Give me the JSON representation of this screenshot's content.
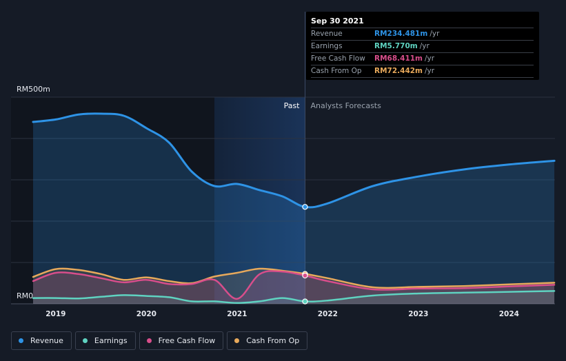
{
  "chart_data": {
    "type": "area",
    "title": "",
    "y_axis": {
      "top_label": "RM500m",
      "bottom_label": "RM0",
      "ylim": [
        0,
        500
      ]
    },
    "x_axis": {
      "ticks": [
        "2019",
        "2020",
        "2021",
        "2022",
        "2023",
        "2024"
      ],
      "xlim": [
        2018.75,
        2024.5
      ]
    },
    "divider_x": 2021.75,
    "past_start_x": 2020.75,
    "regions": {
      "past": "Past",
      "forecast": "Analysts Forecasts"
    },
    "series": [
      {
        "name": "Revenue",
        "color": "#2e93e6",
        "x": [
          2018.75,
          2019.0,
          2019.25,
          2019.5,
          2019.75,
          2020.0,
          2020.25,
          2020.5,
          2020.75,
          2021.0,
          2021.25,
          2021.5,
          2021.75,
          2022.0,
          2022.5,
          2023.0,
          2023.5,
          2024.0,
          2024.5
        ],
        "y": [
          440,
          446,
          458,
          460,
          455,
          425,
          390,
          320,
          285,
          290,
          275,
          260,
          234.481,
          243,
          285,
          308,
          325,
          337,
          346
        ],
        "forecast_from": 2021.75
      },
      {
        "name": "Earnings",
        "color": "#5fd3c1",
        "x": [
          2018.75,
          2019.0,
          2019.25,
          2019.5,
          2019.75,
          2020.0,
          2020.25,
          2020.5,
          2020.75,
          2021.0,
          2021.25,
          2021.5,
          2021.75,
          2022.0,
          2022.5,
          2023.0,
          2023.5,
          2024.0,
          2024.5
        ],
        "y": [
          14,
          14,
          13,
          17,
          21,
          19,
          16,
          6,
          6,
          2,
          6,
          14,
          5.77,
          8,
          20,
          25,
          27,
          29,
          31
        ],
        "forecast_from": 2021.75
      },
      {
        "name": "Free Cash Flow",
        "color": "#d84e8b",
        "x": [
          2018.75,
          2019.0,
          2019.25,
          2019.5,
          2019.75,
          2020.0,
          2020.25,
          2020.5,
          2020.75,
          2021.0,
          2021.25,
          2021.5,
          2021.75,
          2022.0,
          2022.5,
          2023.0,
          2023.5,
          2024.0,
          2024.5
        ],
        "y": [
          55,
          75,
          72,
          62,
          52,
          58,
          48,
          48,
          58,
          12,
          72,
          78,
          68.411,
          55,
          35,
          37,
          38,
          42,
          46
        ],
        "forecast_from": 2021.75
      },
      {
        "name": "Cash From Op",
        "color": "#e8a95b",
        "x": [
          2018.75,
          2019.0,
          2019.25,
          2019.5,
          2019.75,
          2020.0,
          2020.25,
          2020.5,
          2020.75,
          2021.0,
          2021.25,
          2021.5,
          2021.75,
          2022.0,
          2022.5,
          2023.0,
          2023.5,
          2024.0,
          2024.5
        ],
        "y": [
          65,
          84,
          82,
          72,
          58,
          64,
          55,
          50,
          66,
          75,
          85,
          80,
          72.442,
          62,
          40,
          41,
          43,
          47,
          51
        ],
        "forecast_from": 2021.75
      }
    ]
  },
  "tooltip": {
    "date": "Sep 30 2021",
    "rows": [
      {
        "name": "Revenue",
        "value": "RM234.481m",
        "unit": "/yr",
        "color": "#2e93e6"
      },
      {
        "name": "Earnings",
        "value": "RM5.770m",
        "unit": "/yr",
        "color": "#5fd3c1"
      },
      {
        "name": "Free Cash Flow",
        "value": "RM68.411m",
        "unit": "/yr",
        "color": "#d84e8b"
      },
      {
        "name": "Cash From Op",
        "value": "RM72.442m",
        "unit": "/yr",
        "color": "#e8a95b"
      }
    ]
  },
  "legend": [
    {
      "label": "Revenue",
      "color": "#2e93e6"
    },
    {
      "label": "Earnings",
      "color": "#5fd3c1"
    },
    {
      "label": "Free Cash Flow",
      "color": "#d84e8b"
    },
    {
      "label": "Cash From Op",
      "color": "#e8a95b"
    }
  ]
}
